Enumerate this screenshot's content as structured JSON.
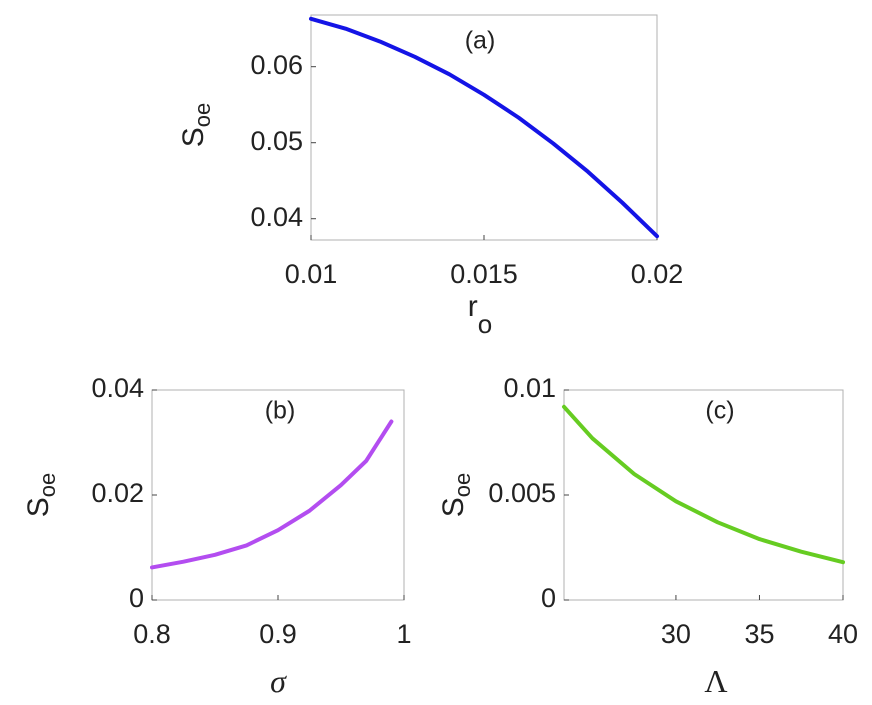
{
  "chart_data": [
    {
      "type": "line",
      "annotation": "(a)",
      "ylabel": "S",
      "ylabel_sub": "oe",
      "xlabel": "r",
      "xlabel_sub": "o",
      "x": [
        0.01,
        0.011,
        0.012,
        0.013,
        0.014,
        0.015,
        0.016,
        0.017,
        0.018,
        0.019,
        0.02
      ],
      "series": [
        {
          "color": "#1414e6",
          "values": [
            0.0663,
            0.065,
            0.0633,
            0.0613,
            0.059,
            0.0563,
            0.0533,
            0.0499,
            0.0462,
            0.0421,
            0.0377
          ]
        }
      ],
      "xlim": [
        0.01,
        0.02
      ],
      "xticks": [
        0.01,
        0.015,
        0.02
      ],
      "ylim": [
        0.0372,
        0.0668
      ],
      "yticks": [
        0.04,
        0.05,
        0.06
      ]
    },
    {
      "type": "line",
      "annotation": "(b)",
      "ylabel": "S",
      "ylabel_sub": "oe",
      "xlabel": "σ",
      "x": [
        0.8,
        0.825,
        0.85,
        0.875,
        0.9,
        0.925,
        0.95,
        0.97,
        0.99
      ],
      "series": [
        {
          "color": "#b34df0",
          "values": [
            0.0062,
            0.0073,
            0.0086,
            0.0104,
            0.0133,
            0.017,
            0.0219,
            0.0265,
            0.034
          ]
        }
      ],
      "xlim": [
        0.8,
        1
      ],
      "xticks": [
        0.8,
        0.9,
        1
      ],
      "ylim": [
        0,
        0.04
      ],
      "yticks": [
        0,
        0.02,
        0.04
      ]
    },
    {
      "type": "line",
      "annotation": "(c)",
      "ylabel": "S",
      "ylabel_sub": "oe",
      "xlabel": "Λ",
      "x": [
        23.3,
        25,
        27.5,
        30,
        32.5,
        35,
        37.5,
        40
      ],
      "series": [
        {
          "color": "#66cc22",
          "values": [
            0.0092,
            0.0077,
            0.006,
            0.0047,
            0.0037,
            0.0029,
            0.0023,
            0.0018
          ]
        }
      ],
      "xlim": [
        23.3,
        40
      ],
      "xticks": [
        30,
        35,
        40
      ],
      "ylim": [
        0,
        0.01
      ],
      "yticks": [
        0,
        0.005,
        0.01
      ]
    }
  ]
}
